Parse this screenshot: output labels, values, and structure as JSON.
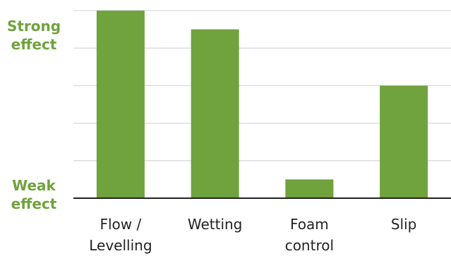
{
  "colors": {
    "bar": "#70a23d",
    "label_accent": "#70a23d",
    "gridline": "#d9d9d9",
    "axis": "#222222"
  },
  "y_axis_labels": {
    "top": [
      "Strong",
      "effect"
    ],
    "bottom": [
      "Weak",
      "effect"
    ]
  },
  "chart_data": {
    "type": "bar",
    "categories": [
      [
        "Flow /",
        "Levelling"
      ],
      [
        "Wetting"
      ],
      [
        "Foam",
        "control"
      ],
      [
        "Slip"
      ]
    ],
    "values": [
      5,
      4.5,
      0.5,
      3
    ],
    "ylim": [
      0,
      5
    ],
    "gridlines": true
  }
}
